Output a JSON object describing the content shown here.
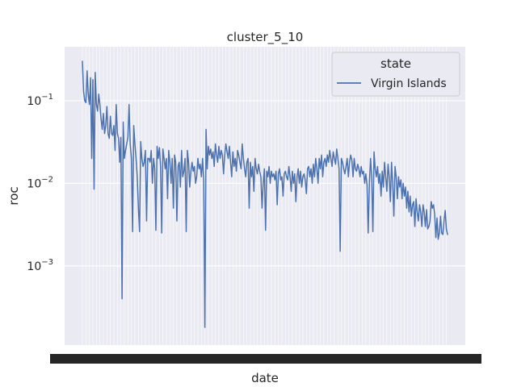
{
  "colors": {
    "plot_bg": "#eaeaf2",
    "grid": "#ffffff",
    "line": "#4c72b0",
    "text": "#262626",
    "legend_bg": "#eaeaf2",
    "legend_border": "#cccccc"
  },
  "chart_data": {
    "type": "line",
    "title": "cluster_5_10",
    "xlabel": "date",
    "ylabel": "roc",
    "yscale": "log",
    "ylim": [
      0.00011,
      0.45
    ],
    "y_ticks": [
      {
        "value": 0.001,
        "base": "10",
        "exp": "−3"
      },
      {
        "value": 0.01,
        "base": "10",
        "exp": "−2"
      },
      {
        "value": 0.1,
        "base": "10",
        "exp": "−1"
      }
    ],
    "x_tick_labels_note": "date tick labels overlap into an illegible band",
    "grid": true,
    "legend": {
      "title": "state",
      "placement": "top-right",
      "entries": [
        "Virgin Islands"
      ]
    },
    "series": [
      {
        "name": "Virgin Islands",
        "values": [
          0.3,
          0.13,
          0.1,
          0.095,
          0.23,
          0.12,
          0.09,
          0.19,
          0.02,
          0.18,
          0.0085,
          0.22,
          0.09,
          0.075,
          0.12,
          0.09,
          0.06,
          0.045,
          0.07,
          0.04,
          0.05,
          0.085,
          0.04,
          0.035,
          0.065,
          0.04,
          0.038,
          0.05,
          0.025,
          0.09,
          0.04,
          0.035,
          0.018,
          0.036,
          0.0004,
          0.055,
          0.02,
          0.025,
          0.03,
          0.036,
          0.09,
          0.03,
          0.02,
          0.0026,
          0.05,
          0.03,
          0.02,
          0.012,
          0.005,
          0.0026,
          0.032,
          0.02,
          0.016,
          0.018,
          0.025,
          0.0035,
          0.02,
          0.02,
          0.018,
          0.025,
          0.01,
          0.02,
          0.015,
          0.0027,
          0.028,
          0.02,
          0.027,
          0.016,
          0.0025,
          0.026,
          0.02,
          0.015,
          0.02,
          0.0065,
          0.025,
          0.018,
          0.01,
          0.02,
          0.005,
          0.022,
          0.018,
          0.0035,
          0.016,
          0.018,
          0.009,
          0.025,
          0.012,
          0.014,
          0.02,
          0.0026,
          0.025,
          0.018,
          0.009,
          0.014,
          0.018,
          0.014,
          0.016,
          0.01,
          0.012,
          0.02,
          0.015,
          0.017,
          0.012,
          0.02,
          0.011,
          0.00018,
          0.045,
          0.015,
          0.028,
          0.022,
          0.026,
          0.02,
          0.024,
          0.016,
          0.03,
          0.022,
          0.018,
          0.028,
          0.02,
          0.025,
          0.022,
          0.013,
          0.022,
          0.03,
          0.024,
          0.02,
          0.028,
          0.018,
          0.012,
          0.024,
          0.016,
          0.02,
          0.014,
          0.025,
          0.022,
          0.018,
          0.015,
          0.03,
          0.02,
          0.015,
          0.012,
          0.018,
          0.02,
          0.005,
          0.018,
          0.012,
          0.016,
          0.008,
          0.02,
          0.015,
          0.013,
          0.017,
          0.014,
          0.012,
          0.005,
          0.01,
          0.015,
          0.0027,
          0.014,
          0.012,
          0.016,
          0.01,
          0.014,
          0.012,
          0.013,
          0.011,
          0.014,
          0.0055,
          0.013,
          0.015,
          0.011,
          0.012,
          0.007,
          0.013,
          0.014,
          0.012,
          0.011,
          0.016,
          0.012,
          0.008,
          0.014,
          0.01,
          0.013,
          0.006,
          0.012,
          0.015,
          0.01,
          0.014,
          0.009,
          0.012,
          0.013,
          0.011,
          0.0075,
          0.015,
          0.016,
          0.012,
          0.015,
          0.01,
          0.017,
          0.012,
          0.02,
          0.015,
          0.01,
          0.02,
          0.015,
          0.022,
          0.012,
          0.018,
          0.02,
          0.016,
          0.022,
          0.018,
          0.025,
          0.02,
          0.016,
          0.024,
          0.02,
          0.017,
          0.026,
          0.02,
          0.015,
          0.0015,
          0.02,
          0.018,
          0.015,
          0.013,
          0.016,
          0.02,
          0.012,
          0.018,
          0.022,
          0.019,
          0.012,
          0.02,
          0.015,
          0.014,
          0.017,
          0.015,
          0.012,
          0.016,
          0.013,
          0.014,
          0.01,
          0.013,
          0.0095,
          0.0025,
          0.01,
          0.02,
          0.012,
          0.0026,
          0.024,
          0.015,
          0.012,
          0.016,
          0.01,
          0.013,
          0.007,
          0.014,
          0.009,
          0.018,
          0.012,
          0.008,
          0.017,
          0.012,
          0.006,
          0.018,
          0.01,
          0.004,
          0.016,
          0.012,
          0.0065,
          0.012,
          0.009,
          0.011,
          0.0065,
          0.01,
          0.007,
          0.009,
          0.005,
          0.008,
          0.0045,
          0.007,
          0.004,
          0.0055,
          0.006,
          0.003,
          0.0065,
          0.0045,
          0.0035,
          0.0055,
          0.0045,
          0.003,
          0.0055,
          0.0045,
          0.003,
          0.0048,
          0.0028,
          0.003,
          0.0035,
          0.006,
          0.005,
          0.0055,
          0.0042,
          0.0022,
          0.0038,
          0.0021,
          0.0025,
          0.004,
          0.0025,
          0.0024,
          0.0035,
          0.0047,
          0.0028,
          0.0024
        ]
      }
    ]
  }
}
